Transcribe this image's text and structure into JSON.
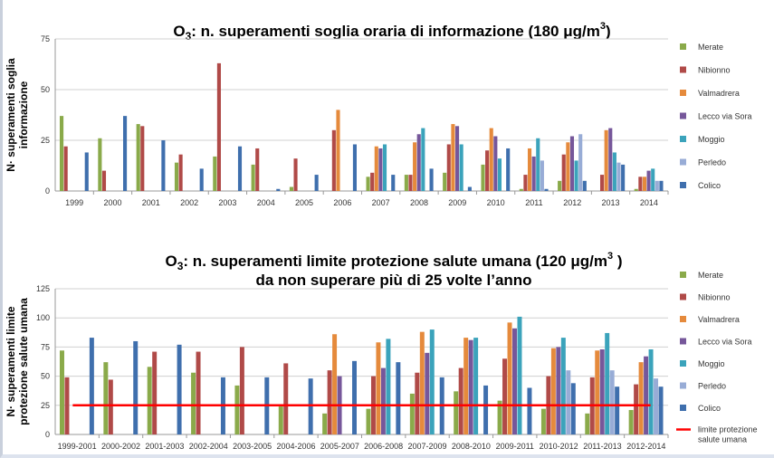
{
  "chart_data": [
    {
      "type": "bar",
      "title": {
        "main": "O",
        "sub": "3",
        "rest": ":  n. superamenti soglia oraria di informazione (180 μg/m",
        "sup": "3",
        "end": ")"
      },
      "ylabel": [
        "N· superamenti soglia",
        "informazione"
      ],
      "ylim": [
        0,
        75
      ],
      "yticks": [
        "0",
        "25",
        "50",
        "75"
      ],
      "grid": true,
      "legend_position": "right",
      "categories": [
        "1999",
        "2000",
        "2001",
        "2002",
        "2003",
        "2004",
        "2005",
        "2006",
        "2007",
        "2008",
        "2009",
        "2010",
        "2011",
        "2012",
        "2013",
        "2014"
      ],
      "series": [
        {
          "name": "Merate",
          "color": "#8aaa4a",
          "values": [
            37,
            26,
            33,
            14,
            17,
            13,
            2,
            null,
            7,
            8,
            9,
            13,
            1,
            5,
            null,
            1
          ]
        },
        {
          "name": "Nibionno",
          "color": "#b04a48",
          "values": [
            22,
            10,
            32,
            18,
            63,
            21,
            16,
            30,
            9,
            8,
            23,
            20,
            8,
            18,
            8,
            7
          ]
        },
        {
          "name": "Valmadrera",
          "color": "#e58a3c",
          "values": [
            null,
            null,
            null,
            null,
            null,
            null,
            null,
            40,
            22,
            24,
            33,
            31,
            21,
            24,
            30,
            7
          ]
        },
        {
          "name": "Lecco via Sora",
          "color": "#76579a",
          "values": [
            null,
            null,
            null,
            null,
            null,
            null,
            null,
            null,
            21,
            28,
            32,
            27,
            17,
            27,
            31,
            10
          ]
        },
        {
          "name": "Moggio",
          "color": "#3ba3bb",
          "values": [
            null,
            null,
            null,
            null,
            null,
            null,
            null,
            null,
            23,
            31,
            23,
            16,
            26,
            15,
            19,
            11
          ]
        },
        {
          "name": "Perledo",
          "color": "#98acd6",
          "values": [
            null,
            null,
            null,
            null,
            null,
            null,
            null,
            null,
            null,
            null,
            null,
            null,
            15,
            28,
            14,
            5
          ]
        },
        {
          "name": "Colico",
          "color": "#3f6fad",
          "values": [
            19,
            37,
            25,
            11,
            22,
            1,
            8,
            23,
            8,
            11,
            2,
            21,
            1,
            5,
            13,
            5
          ]
        }
      ]
    },
    {
      "type": "bar",
      "title": {
        "main": "O",
        "sub": "3",
        "rest": ":  n. superamenti limite protezione salute umana (120 μg/m",
        "sup": "3",
        "end": " )",
        "line2": "da non superare più di 25 volte l’anno"
      },
      "ylabel": [
        "N· superamenti limite",
        "protezione salute umana"
      ],
      "ylim": [
        0,
        125
      ],
      "yticks": [
        "0",
        "25",
        "50",
        "75",
        "100",
        "125"
      ],
      "grid": true,
      "legend_position": "right",
      "categories": [
        "1999-2001",
        "2000-2002",
        "2001-2003",
        "2002-2004",
        "2003-2005",
        "2004-2006",
        "2005-2007",
        "2006-2008",
        "2007-2009",
        "2008-2010",
        "2009-2011",
        "2010-2012",
        "2011-2013",
        "2012-2014"
      ],
      "series": [
        {
          "name": "Merate",
          "color": "#8aaa4a",
          "values": [
            72,
            62,
            58,
            53,
            42,
            24,
            18,
            22,
            35,
            37,
            29,
            22,
            18,
            21
          ]
        },
        {
          "name": "Nibionno",
          "color": "#b04a48",
          "values": [
            49,
            47,
            71,
            71,
            75,
            61,
            55,
            50,
            53,
            57,
            65,
            50,
            49,
            43
          ]
        },
        {
          "name": "Valmadrera",
          "color": "#e58a3c",
          "values": [
            null,
            null,
            null,
            null,
            null,
            null,
            86,
            79,
            88,
            83,
            96,
            74,
            72,
            62
          ]
        },
        {
          "name": "Lecco via Sora",
          "color": "#76579a",
          "values": [
            null,
            null,
            null,
            null,
            null,
            null,
            50,
            57,
            70,
            81,
            91,
            75,
            73,
            67
          ]
        },
        {
          "name": "Moggio",
          "color": "#3ba3bb",
          "values": [
            null,
            null,
            null,
            null,
            null,
            null,
            null,
            82,
            90,
            83,
            101,
            83,
            87,
            73
          ]
        },
        {
          "name": "Perledo",
          "color": "#98acd6",
          "values": [
            null,
            null,
            null,
            null,
            null,
            null,
            null,
            null,
            null,
            null,
            null,
            55,
            55,
            48
          ]
        },
        {
          "name": "Colico",
          "color": "#3f6fad",
          "values": [
            83,
            80,
            77,
            49,
            49,
            48,
            63,
            62,
            49,
            42,
            40,
            44,
            41,
            41
          ]
        }
      ],
      "limit_line": {
        "name": "limite protezione salute umana",
        "label_lines": [
          "limite protezione",
          "salute umana"
        ],
        "value": 25,
        "color": "#ff0000"
      }
    }
  ]
}
